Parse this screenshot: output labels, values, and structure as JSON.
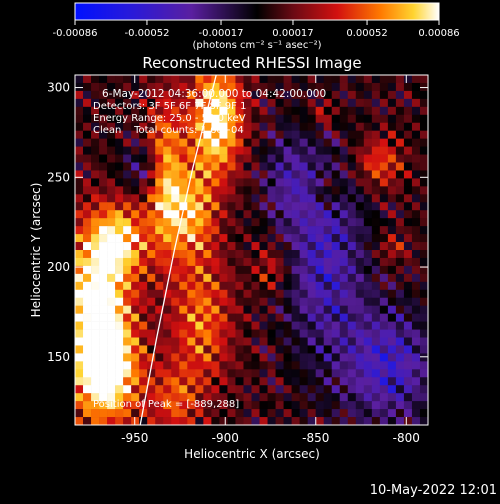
{
  "chart_data": {
    "type": "heatmap",
    "title": "Reconstructed RHESSI Image",
    "xlabel": "Heliocentric X (arcsec)",
    "ylabel": "Heliocentric Y (arcsec)",
    "xlim": [
      -983,
      -788
    ],
    "ylim": [
      112,
      307
    ],
    "x_ticks": [
      -950,
      -900,
      -850,
      -800
    ],
    "x_tick_labels": [
      "-950",
      "-900",
      "-850",
      "-800"
    ],
    "y_ticks": [
      150,
      200,
      250,
      300
    ],
    "y_tick_labels": [
      "150",
      "200",
      "250",
      "300"
    ],
    "colorbar": {
      "ticks": [
        -0.00086,
        -0.00052,
        -0.00017,
        0.00017,
        0.00052,
        0.00086
      ],
      "tick_labels": [
        "-0.00086",
        "-0.00052",
        "-0.00017",
        "0.00017",
        "0.00052",
        "0.00086"
      ],
      "range": [
        -0.00086,
        0.00086
      ],
      "units": "(photons cm⁻² s⁻¹ asec⁻²)"
    },
    "annotations": [
      "6-May-2012 04:36:00.000 to 04:42:00.000",
      "Detectors: 3F 5F 6F 7F 8F 9F 1",
      "Energy Range: 25.0 - 50.0 keV",
      "Clean    Total counts: 1.6e+04"
    ],
    "peak_label": "Position of Peak = [-889,288]",
    "peak_position": [
      -889,
      288
    ],
    "limb_curve": [
      [
        -947,
        112
      ],
      [
        -938,
        160
      ],
      [
        -928,
        210
      ],
      [
        -918,
        255
      ],
      [
        -905,
        307
      ]
    ],
    "blobs": [
      {
        "x": -972,
        "y": 180,
        "sx": 14,
        "sy": 30,
        "a": 1.0
      },
      {
        "x": -965,
        "y": 140,
        "sx": 13,
        "sy": 20,
        "a": 0.9
      },
      {
        "x": -958,
        "y": 215,
        "sx": 11,
        "sy": 14,
        "a": 0.7
      },
      {
        "x": -933,
        "y": 250,
        "sx": 7,
        "sy": 30,
        "a": 0.75
      },
      {
        "x": -905,
        "y": 282,
        "sx": 10,
        "sy": 22,
        "a": 1.0
      },
      {
        "x": -918,
        "y": 230,
        "sx": 9,
        "sy": 18,
        "a": 0.65
      },
      {
        "x": -913,
        "y": 170,
        "sx": 12,
        "sy": 26,
        "a": 0.55
      },
      {
        "x": -928,
        "y": 125,
        "sx": 9,
        "sy": 14,
        "a": 0.45
      },
      {
        "x": -874,
        "y": 200,
        "sx": 7,
        "sy": 10,
        "a": 0.35
      },
      {
        "x": -815,
        "y": 258,
        "sx": 9,
        "sy": 10,
        "a": 0.5
      },
      {
        "x": -843,
        "y": 242,
        "sx": 5,
        "sy": 6,
        "a": 0.35
      },
      {
        "x": -808,
        "y": 210,
        "sx": 6,
        "sy": 6,
        "a": 0.3
      },
      {
        "x": -846,
        "y": 285,
        "sx": 5,
        "sy": 5,
        "a": 0.3
      },
      {
        "x": -845,
        "y": 205,
        "sx": 16,
        "sy": 38,
        "a": -0.55
      },
      {
        "x": -810,
        "y": 145,
        "sx": 18,
        "sy": 22,
        "a": -0.6
      },
      {
        "x": -865,
        "y": 250,
        "sx": 10,
        "sy": 18,
        "a": -0.35
      },
      {
        "x": -945,
        "y": 255,
        "sx": 9,
        "sy": 9,
        "a": -0.35
      }
    ]
  },
  "footer": {
    "timestamp": "10-May-2022 12:01"
  }
}
